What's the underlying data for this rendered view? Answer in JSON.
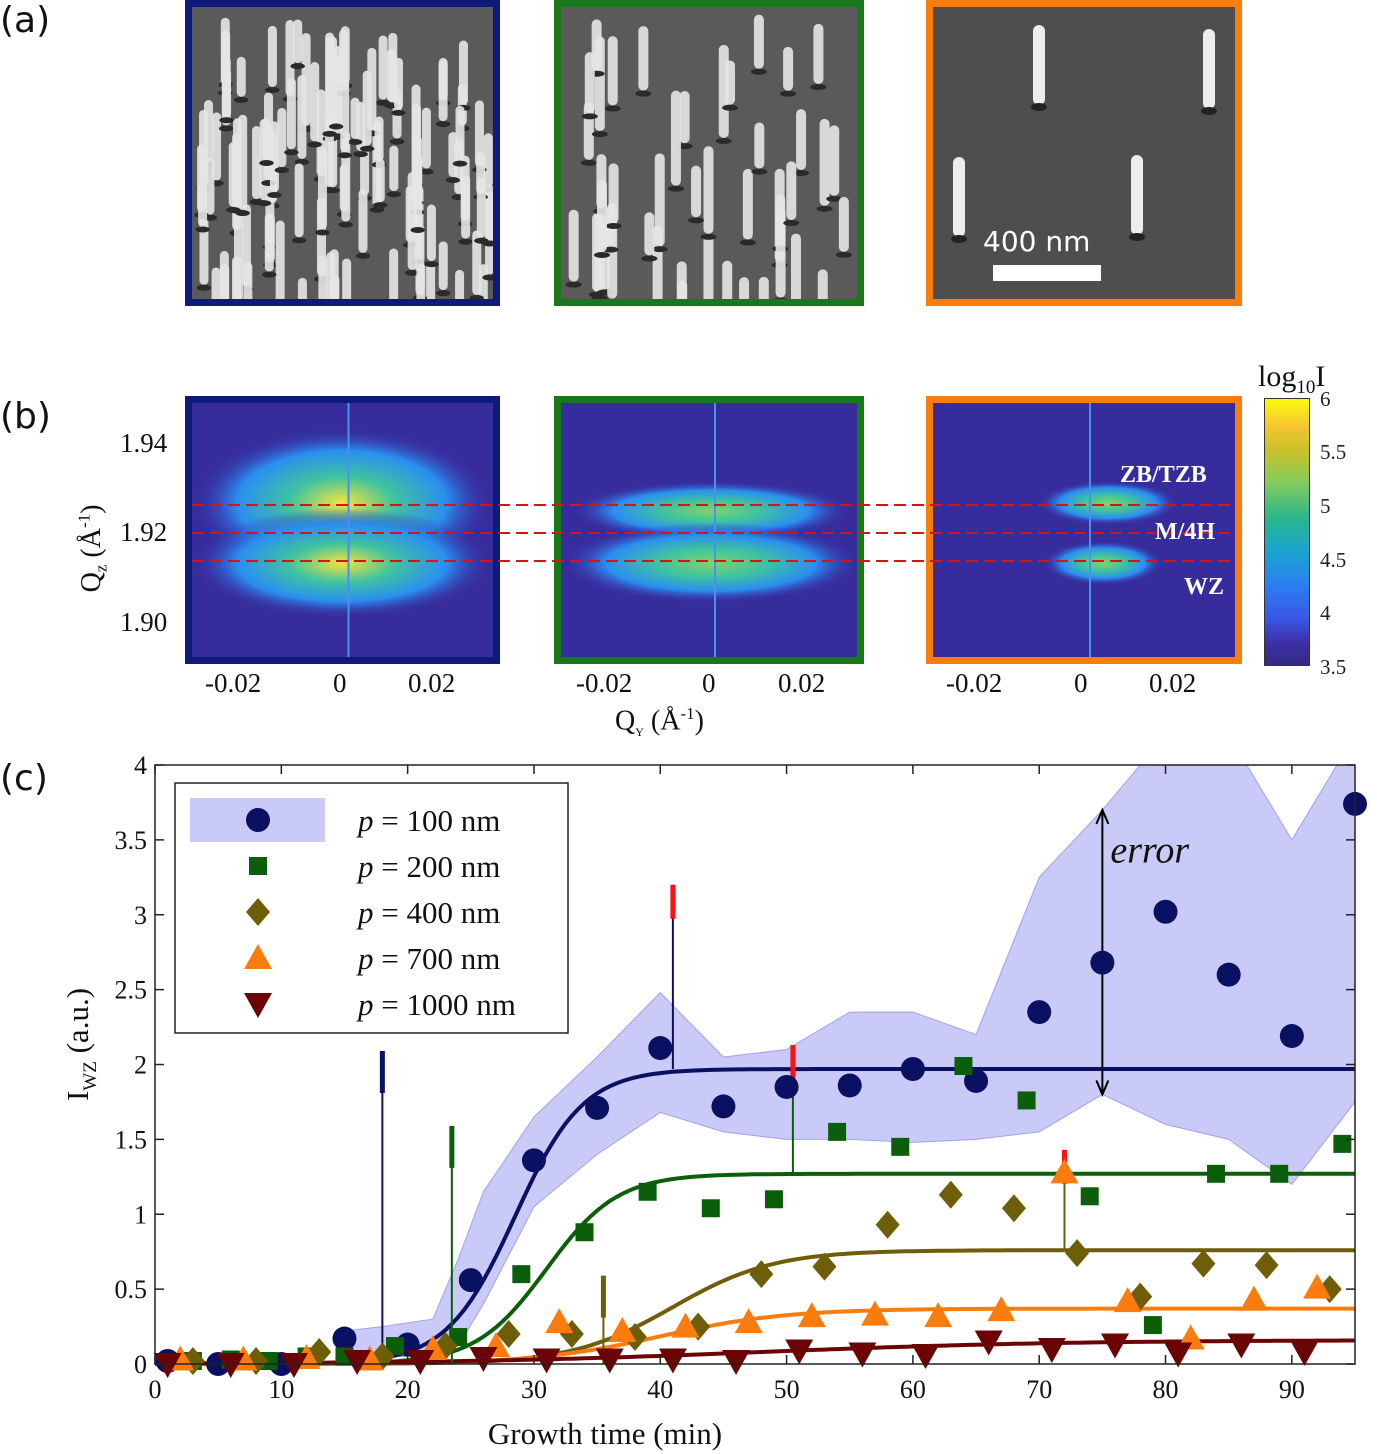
{
  "panel_labels": {
    "a": "(a)",
    "b": "(b)",
    "c": "(c)"
  },
  "colors": {
    "p100": "#0a1062",
    "p200": "#0b5f0b",
    "p400": "#6e5e0a",
    "p700": "#fb7c0e",
    "p1000": "#6b0505",
    "band": "#c9caf7",
    "frame_blue": "#101a7a",
    "frame_green": "#19781a",
    "frame_orange": "#fb7d10",
    "marker_red": "#ff1010"
  },
  "panel_a": {
    "scale_bar_label": "400 nm"
  },
  "panel_b": {
    "xlabel": "Q",
    "xlabel_sub": "Y",
    "xlabel_unit": " (Å",
    "xlabel_exp": "-1",
    "xlabel_close": ")",
    "ylabel": "Q",
    "ylabel_sub": "z",
    "ylabel_unit": " (Å",
    "ylabel_exp": "-1",
    "ylabel_close": ")",
    "x_ticks": [
      "-0.02",
      "0",
      "0.02"
    ],
    "y_ticks": [
      "1.94",
      "1.92",
      "1.90"
    ],
    "phase_labels": [
      "ZB/TZB",
      "M/4H",
      "WZ"
    ],
    "colorbar_title": "log",
    "colorbar_title_sub": "10",
    "colorbar_title_end": "I",
    "colorbar_ticks": [
      "6",
      "5.5",
      "5",
      "4.5",
      "4",
      "3.5"
    ]
  },
  "chart_data": {
    "type": "scatter",
    "xlabel": "Growth time (min)",
    "ylabel": "I",
    "ylabel_sub": "WZ",
    "ylabel_unit": " (a.u.)",
    "xlim": [
      0,
      95
    ],
    "ylim": [
      0,
      4
    ],
    "x_ticks": [
      0,
      10,
      20,
      30,
      40,
      50,
      60,
      70,
      80,
      90
    ],
    "y_ticks": [
      0,
      0.5,
      1,
      1.5,
      2,
      2.5,
      3,
      3.5,
      4
    ],
    "annotation": "error",
    "legend_placement": "top-left",
    "series": [
      {
        "name": "= 100 nm",
        "prefix": "p",
        "marker": "circle",
        "x": [
          1,
          5,
          10,
          15,
          20,
          25,
          30,
          35,
          40,
          45,
          50,
          55,
          60,
          65,
          70,
          75,
          80,
          85,
          90,
          95
        ],
        "y": [
          0.02,
          0.0,
          0.0,
          0.17,
          0.13,
          0.56,
          1.36,
          1.71,
          2.11,
          1.72,
          1.85,
          1.86,
          1.97,
          1.89,
          2.35,
          2.68,
          3.02,
          2.6,
          2.19,
          3.74
        ],
        "fit": {
          "plateau": 1.97,
          "t0": 28.5,
          "width": 2.7
        },
        "band_x": [
          15,
          18,
          22,
          24,
          26,
          30,
          35,
          40,
          45,
          50,
          55,
          60,
          65,
          70,
          75,
          80,
          85,
          90,
          95
        ],
        "band_upper": [
          0.22,
          0.25,
          0.3,
          0.7,
          1.15,
          1.65,
          2.05,
          2.48,
          2.05,
          2.1,
          2.35,
          2.35,
          2.2,
          3.25,
          3.7,
          4.2,
          4.2,
          3.5,
          4.2
        ],
        "band_lower": [
          0.1,
          0.05,
          0.05,
          0.12,
          0.4,
          1.05,
          1.4,
          1.68,
          1.55,
          1.5,
          1.5,
          1.48,
          1.5,
          1.55,
          1.8,
          1.6,
          1.5,
          1.2,
          1.75
        ]
      },
      {
        "name": "= 200 nm",
        "prefix": "p",
        "marker": "square",
        "x": [
          3,
          6,
          9,
          12,
          15,
          19,
          24,
          29,
          34,
          39,
          44,
          49,
          54,
          59,
          64,
          69,
          74,
          79,
          84,
          89,
          94
        ],
        "y": [
          0.02,
          0.03,
          0.02,
          0.05,
          0.05,
          0.12,
          0.18,
          0.6,
          0.88,
          1.15,
          1.04,
          1.1,
          1.55,
          1.45,
          1.99,
          1.76,
          1.12,
          0.26,
          1.27,
          1.27,
          1.47
        ],
        "fit": {
          "plateau": 1.27,
          "t0": 31.0,
          "width": 2.8
        }
      },
      {
        "name": "= 400 nm",
        "prefix": "p",
        "marker": "diamond",
        "x": [
          3,
          8,
          13,
          18,
          23,
          28,
          33,
          38,
          43,
          48,
          53,
          58,
          63,
          68,
          73,
          78,
          83,
          88,
          93
        ],
        "y": [
          0.02,
          0.02,
          0.08,
          0.05,
          0.12,
          0.2,
          0.2,
          0.18,
          0.25,
          0.6,
          0.65,
          0.93,
          1.13,
          1.04,
          0.74,
          0.45,
          0.67,
          0.66,
          0.5
        ],
        "fit": {
          "plateau": 0.76,
          "t0": 41.0,
          "width": 4.0
        }
      },
      {
        "name": "= 700 nm",
        "prefix": "p",
        "marker": "triangle-up",
        "x": [
          2,
          7,
          12,
          17,
          22,
          27,
          32,
          37,
          42,
          47,
          52,
          57,
          62,
          67,
          72,
          77,
          82,
          87,
          92
        ],
        "y": [
          0.03,
          0.03,
          0.04,
          0.03,
          0.1,
          0.12,
          0.28,
          0.22,
          0.25,
          0.28,
          0.32,
          0.33,
          0.32,
          0.36,
          1.28,
          0.42,
          0.17,
          0.43,
          0.51
        ],
        "fit": {
          "plateau": 0.37,
          "t0": 40.0,
          "width": 5.0
        }
      },
      {
        "name": "= 1000 nm",
        "prefix": "p",
        "marker": "triangle-down",
        "x": [
          1,
          6,
          11,
          16,
          21,
          26,
          31,
          36,
          41,
          46,
          51,
          56,
          61,
          66,
          71,
          76,
          81,
          86,
          91
        ],
        "y": [
          0.0,
          0.0,
          0.0,
          0.02,
          0.02,
          0.04,
          0.03,
          0.03,
          0.03,
          0.02,
          0.09,
          0.07,
          0.06,
          0.15,
          0.1,
          0.13,
          0.07,
          0.13,
          0.08
        ],
        "fit": {
          "plateau": 0.16,
          "t0": 48.0,
          "width": 12.0
        }
      }
    ],
    "markers_vertical": [
      {
        "x": 18,
        "color_key": "p100",
        "y_top": 2.05,
        "tag": "dark"
      },
      {
        "x": 23.5,
        "color_key": "p200",
        "y_top": 1.55,
        "tag": "dark"
      },
      {
        "x": 35.5,
        "color_key": "p400",
        "y_top": 0.55,
        "tag": "dark"
      },
      {
        "x": 41,
        "color_key": "p100",
        "y_from": 1.97,
        "y_top": 3.2,
        "tag": "red"
      },
      {
        "x": 50.5,
        "color_key": "p200",
        "y_from": 1.27,
        "y_top": 2.13,
        "tag": "red"
      },
      {
        "x": 72,
        "color_key": "p400",
        "y_from": 0.76,
        "y_top": 1.43,
        "tag": "red"
      }
    ],
    "error_arrow": {
      "x": 75,
      "y_from": 1.8,
      "y_to": 3.7
    }
  }
}
